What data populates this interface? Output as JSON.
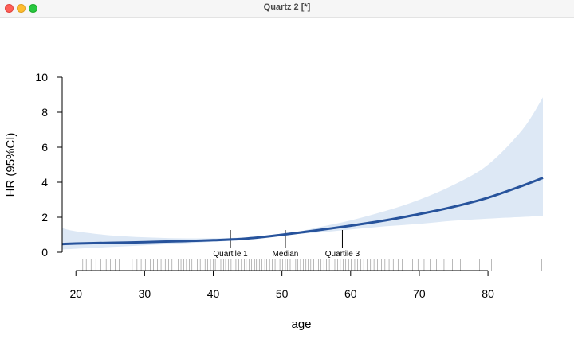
{
  "window": {
    "title": "Quartz 2 [*]"
  },
  "colors": {
    "line": "#27539c",
    "band": "#dde8f5",
    "axis": "#000000"
  },
  "chart_data": {
    "type": "line",
    "title": "",
    "xlabel": "age",
    "ylabel": "HR (95%CI)",
    "xlim": [
      18,
      88
    ],
    "ylim": [
      0,
      10
    ],
    "xticks": [
      "20",
      "30",
      "40",
      "50",
      "60",
      "70",
      "80"
    ],
    "xtick_values": [
      20,
      30,
      40,
      50,
      60,
      70,
      80
    ],
    "yticks": [
      "0",
      "2",
      "4",
      "6",
      "8",
      "10"
    ],
    "ytick_values": [
      0,
      2,
      4,
      6,
      8,
      10
    ],
    "grid": false,
    "series": [
      {
        "role": "estimate",
        "x": [
          18,
          20,
          25,
          30,
          35,
          40,
          45,
          50,
          55,
          60,
          65,
          70,
          75,
          80,
          85,
          88
        ],
        "y": [
          0.47,
          0.5,
          0.54,
          0.58,
          0.63,
          0.69,
          0.79,
          1.0,
          1.25,
          1.52,
          1.82,
          2.18,
          2.6,
          3.12,
          3.8,
          4.25
        ]
      },
      {
        "role": "ci_upper",
        "x": [
          18,
          20,
          25,
          30,
          35,
          40,
          45,
          50,
          55,
          60,
          65,
          70,
          75,
          80,
          85,
          88
        ],
        "y": [
          1.38,
          1.2,
          0.97,
          0.86,
          0.8,
          0.8,
          0.86,
          1.0,
          1.4,
          1.82,
          2.35,
          3.0,
          3.85,
          5.0,
          7.0,
          8.85
        ]
      },
      {
        "role": "ci_lower",
        "x": [
          18,
          20,
          25,
          30,
          35,
          40,
          45,
          50,
          55,
          60,
          65,
          70,
          75,
          80,
          85,
          88
        ],
        "y": [
          0.16,
          0.2,
          0.3,
          0.4,
          0.5,
          0.6,
          0.72,
          1.0,
          1.12,
          1.3,
          1.48,
          1.62,
          1.8,
          1.92,
          2.02,
          2.08
        ]
      }
    ],
    "annotations": [
      {
        "label": "Quartile 1",
        "x": 42.5,
        "y": 0.7
      },
      {
        "label": "Median",
        "x": 50.5,
        "y": 1.0
      },
      {
        "label": "Quartile 3",
        "x": 58.8,
        "y": 1.45
      }
    ],
    "rug": [
      21,
      21.5,
      22.2,
      22.9,
      23.6,
      24.4,
      25,
      25.7,
      26.3,
      27,
      27.6,
      28.2,
      28.9,
      29.5,
      30.1,
      30.8,
      31.3,
      31.9,
      32.4,
      33,
      33.5,
      34,
      34.4,
      34.9,
      35.3,
      35.7,
      36.1,
      36.5,
      36.9,
      37.3,
      37.7,
      38.1,
      38.4,
      38.8,
      39.2,
      39.6,
      40,
      40.3,
      40.7,
      41.1,
      41.5,
      41.8,
      42.2,
      42.6,
      43,
      43.3,
      43.7,
      44.1,
      44.5,
      44.8,
      45.2,
      45.6,
      46,
      46.3,
      46.7,
      47.1,
      47.5,
      47.8,
      48.2,
      48.6,
      49,
      49.3,
      49.7,
      50.1,
      50.5,
      50.8,
      51.2,
      51.6,
      52,
      52.3,
      52.7,
      53.1,
      53.5,
      53.8,
      54.2,
      54.6,
      55,
      55.3,
      55.7,
      56.1,
      56.5,
      56.9,
      57.3,
      57.7,
      58.1,
      58.5,
      58.9,
      59.3,
      59.7,
      60.1,
      60.6,
      61,
      61.5,
      61.9,
      62.4,
      62.9,
      63.4,
      63.9,
      64.5,
      65,
      65.6,
      66.2,
      66.9,
      67.5,
      68.2,
      69,
      69.8,
      70.7,
      71.6,
      72.5,
      73.6,
      74.8,
      76,
      77.4,
      78.8,
      80.5,
      82.5,
      84.8,
      87.8
    ]
  }
}
